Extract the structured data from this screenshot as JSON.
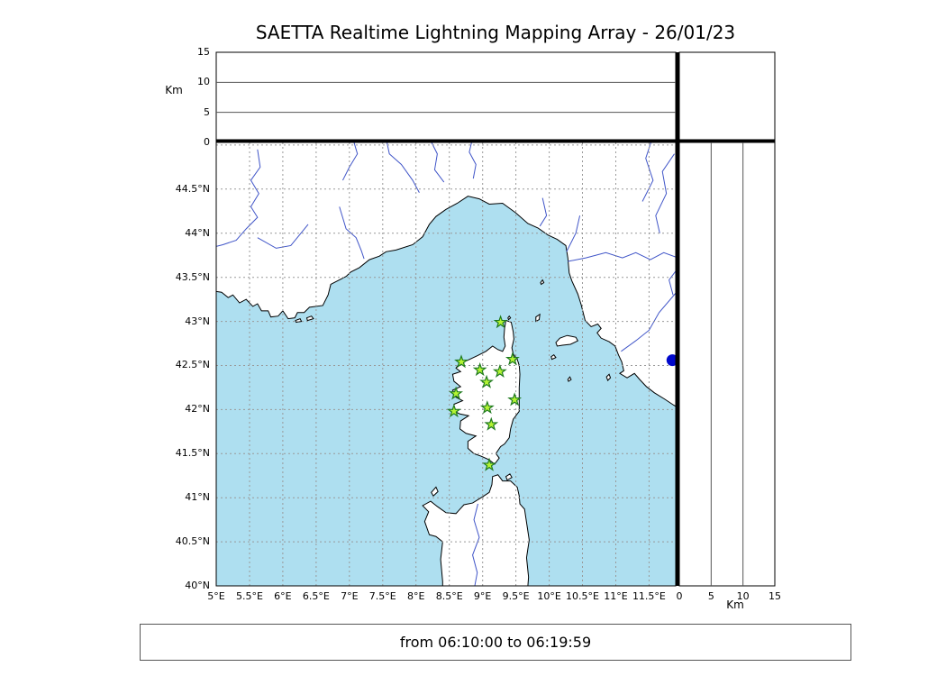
{
  "title": "SAETTA Realtime Lightning Mapping Array - 26/01/23",
  "footer": {
    "text": "from 06:10:00 to 06:19:59"
  },
  "colors": {
    "sea": "#aedff0",
    "land": "#ffffff",
    "coast": "#000000",
    "river": "#4055c8",
    "grid": "#999999",
    "star_fill": "#b4f434",
    "star_edge": "#1f7a1f",
    "source_dot": "#0008cc"
  },
  "map": {
    "lon_min": 5,
    "lon_max": 11.9,
    "lat_min": 40,
    "lat_max": 45.03,
    "lon_ticks": [
      {
        "v": 5,
        "label": "5°E"
      },
      {
        "v": 5.5,
        "label": "5.5°E"
      },
      {
        "v": 6,
        "label": "6°E"
      },
      {
        "v": 6.5,
        "label": "6.5°E"
      },
      {
        "v": 7,
        "label": "7°E"
      },
      {
        "v": 7.5,
        "label": "7.5°E"
      },
      {
        "v": 8,
        "label": "8°E"
      },
      {
        "v": 8.5,
        "label": "8.5°E"
      },
      {
        "v": 9,
        "label": "9°E"
      },
      {
        "v": 9.5,
        "label": "9.5°E"
      },
      {
        "v": 10,
        "label": "10°E"
      },
      {
        "v": 10.5,
        "label": "10.5°E"
      },
      {
        "v": 11,
        "label": "11°E"
      },
      {
        "v": 11.5,
        "label": "11.5°E"
      }
    ],
    "lat_ticks": [
      {
        "v": 40,
        "label": "40°N"
      },
      {
        "v": 40.5,
        "label": "40.5°N"
      },
      {
        "v": 41,
        "label": "41°N"
      },
      {
        "v": 41.5,
        "label": "41.5°N"
      },
      {
        "v": 42,
        "label": "42°N"
      },
      {
        "v": 42.5,
        "label": "42.5°N"
      },
      {
        "v": 43,
        "label": "43°N"
      },
      {
        "v": 43.5,
        "label": "43.5°N"
      },
      {
        "v": 44,
        "label": "44°N"
      },
      {
        "v": 44.5,
        "label": "44.5°N"
      }
    ],
    "lon_gridlines": [
      5.5,
      6,
      6.5,
      7,
      7.5,
      8,
      8.5,
      9,
      9.5,
      10,
      10.5,
      11,
      11.5
    ],
    "lat_gridlines": [
      40.5,
      41,
      41.5,
      42,
      42.5,
      43,
      43.5,
      44,
      44.5,
      45
    ]
  },
  "altitude_axis": {
    "label": "Km",
    "max": 15,
    "ticks": [
      {
        "v": 0,
        "label": "0"
      },
      {
        "v": 5,
        "label": "5"
      },
      {
        "v": 10,
        "label": "10"
      },
      {
        "v": 15,
        "label": "15"
      }
    ],
    "gridlines": [
      5,
      10
    ]
  },
  "chart_data": {
    "type": "scatter",
    "title": "SAETTA Realtime Lightning Mapping Array - 26/01/23",
    "time_window": {
      "from": "06:10:00",
      "to": "06:19:59"
    },
    "panels": [
      {
        "name": "altitude-vs-longitude",
        "ylabel": "Km",
        "ylim": [
          0,
          15
        ],
        "yticks": [
          0,
          5,
          10,
          15
        ],
        "points": []
      },
      {
        "name": "geographic-map",
        "xlim": [
          5,
          11.9
        ],
        "ylim": [
          40,
          45.03
        ],
        "grid": "dashed every 0.5 degree"
      },
      {
        "name": "altitude-vs-latitude",
        "xlabel": "Km",
        "xlim": [
          0,
          15
        ],
        "xticks": [
          0,
          5,
          10,
          15
        ],
        "points": []
      },
      {
        "name": "top-right-histogram",
        "points": []
      }
    ],
    "stations": [
      {
        "lon": 9.27,
        "lat": 42.99
      },
      {
        "lon": 8.68,
        "lat": 42.54
      },
      {
        "lon": 8.96,
        "lat": 42.45
      },
      {
        "lon": 9.26,
        "lat": 42.43
      },
      {
        "lon": 9.45,
        "lat": 42.57
      },
      {
        "lon": 9.06,
        "lat": 42.31
      },
      {
        "lon": 8.6,
        "lat": 42.18
      },
      {
        "lon": 9.48,
        "lat": 42.11
      },
      {
        "lon": 8.57,
        "lat": 41.98
      },
      {
        "lon": 9.07,
        "lat": 42.02
      },
      {
        "lon": 9.13,
        "lat": 41.83
      },
      {
        "lon": 9.1,
        "lat": 41.37
      }
    ],
    "station_marker": "green star",
    "source_point": {
      "lon": 11.85,
      "lat": 42.56,
      "marker": "blue filled circle"
    }
  }
}
